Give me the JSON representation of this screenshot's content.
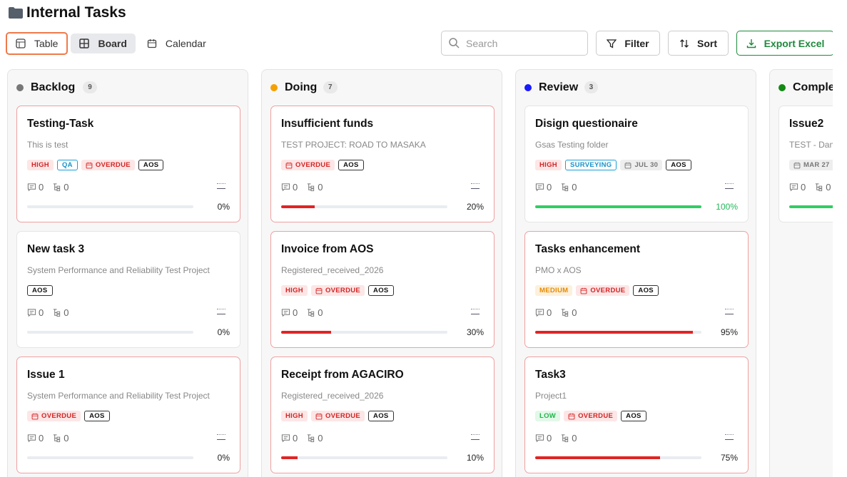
{
  "header": {
    "title": "Internal Tasks"
  },
  "views": [
    {
      "label": "Table",
      "focused": true
    },
    {
      "label": "Board",
      "active": true
    },
    {
      "label": "Calendar"
    }
  ],
  "search_placeholder": "Search",
  "actions": [
    "Filter",
    "Sort",
    "Export Excel"
  ],
  "columns": [
    {
      "name": "Backlog",
      "count": 9,
      "color": "#777777",
      "cards": [
        {
          "title": "Testing-Task",
          "project": "This is test",
          "tags": [
            {
              "label": "HIGH",
              "kind": "high"
            },
            {
              "label": "QA",
              "kind": "info"
            },
            {
              "label": "OVERDUE",
              "kind": "overdue"
            },
            {
              "label": "AOS",
              "kind": "plain"
            }
          ],
          "comments": 0,
          "subtasks": 0,
          "progress": 0,
          "progress_label": "0%"
        },
        {
          "title": "New task 3",
          "project": "System Performance and Reliability Test Project",
          "tags": [
            {
              "label": "AOS",
              "kind": "plain"
            }
          ],
          "comments": 0,
          "subtasks": 0,
          "progress": 0,
          "progress_label": "0%"
        },
        {
          "title": "Issue 1",
          "project": "System Performance and Reliability Test Project",
          "tags": [
            {
              "label": "OVERDUE",
              "kind": "overdue"
            },
            {
              "label": "AOS",
              "kind": "plain"
            }
          ],
          "comments": 0,
          "subtasks": 0,
          "progress": 0,
          "progress_label": "0%"
        }
      ]
    },
    {
      "name": "Doing",
      "count": 7,
      "color": "#f5a000",
      "cards": [
        {
          "title": "Insufficient funds",
          "project": "TEST PROJECT: ROAD TO MASAKA",
          "tags": [
            {
              "label": "OVERDUE",
              "kind": "overdue"
            },
            {
              "label": "AOS",
              "kind": "plain"
            }
          ],
          "comments": 0,
          "subtasks": 0,
          "progress": 20,
          "progress_label": "20%"
        },
        {
          "title": "Invoice from AOS",
          "project": "Registered_received_2026",
          "tags": [
            {
              "label": "HIGH",
              "kind": "high"
            },
            {
              "label": "OVERDUE",
              "kind": "overdue"
            },
            {
              "label": "AOS",
              "kind": "plain"
            }
          ],
          "comments": 0,
          "subtasks": 0,
          "progress": 30,
          "progress_label": "30%"
        },
        {
          "title": "Receipt from AGACIRO",
          "project": "Registered_received_2026",
          "tags": [
            {
              "label": "HIGH",
              "kind": "high"
            },
            {
              "label": "OVERDUE",
              "kind": "overdue"
            },
            {
              "label": "AOS",
              "kind": "plain"
            }
          ],
          "comments": 0,
          "subtasks": 0,
          "progress": 10,
          "progress_label": "10%"
        }
      ]
    },
    {
      "name": "Review",
      "count": 3,
      "color": "#1a1aff",
      "cards": [
        {
          "title": "Disign questionaire",
          "project": "Gsas Testing folder",
          "tags": [
            {
              "label": "HIGH",
              "kind": "high"
            },
            {
              "label": "SURVEYING",
              "kind": "info"
            },
            {
              "label": "JUL 30",
              "kind": "date"
            },
            {
              "label": "AOS",
              "kind": "plain"
            }
          ],
          "comments": 0,
          "subtasks": 0,
          "progress": 100,
          "progress_label": "100%"
        },
        {
          "title": "Tasks enhancement",
          "project": "PMO x AOS",
          "tags": [
            {
              "label": "MEDIUM",
              "kind": "medium"
            },
            {
              "label": "OVERDUE",
              "kind": "overdue"
            },
            {
              "label": "AOS",
              "kind": "plain"
            }
          ],
          "comments": 0,
          "subtasks": 0,
          "progress": 95,
          "progress_label": "95%"
        },
        {
          "title": "Task3",
          "project": "Project1",
          "tags": [
            {
              "label": "LOW",
              "kind": "low"
            },
            {
              "label": "OVERDUE",
              "kind": "overdue"
            },
            {
              "label": "AOS",
              "kind": "plain"
            }
          ],
          "comments": 0,
          "subtasks": 0,
          "progress": 75,
          "progress_label": "75%"
        }
      ]
    },
    {
      "name": "Completed",
      "color": "#138a13",
      "cards": [
        {
          "title": "Issue2",
          "project": "TEST - Dam",
          "tags": [
            {
              "label": "MAR 27",
              "kind": "date"
            }
          ],
          "comments": 0,
          "subtasks": 0,
          "progress": 100
        }
      ]
    }
  ]
}
